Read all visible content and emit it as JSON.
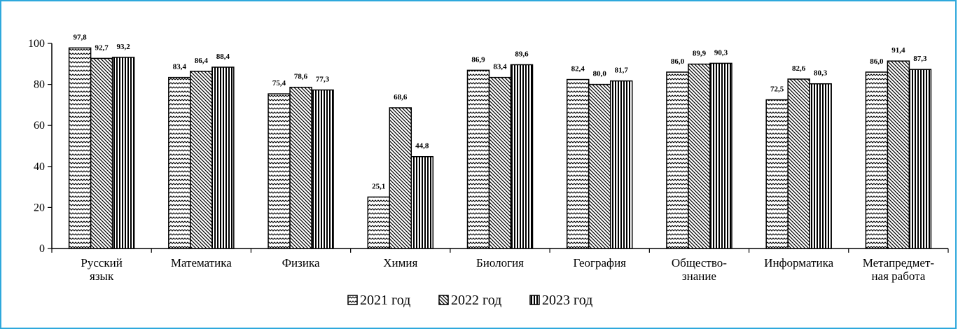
{
  "chart_data": {
    "type": "bar",
    "categories": [
      [
        "Русский",
        "язык"
      ],
      [
        "Математика"
      ],
      [
        "Физика"
      ],
      [
        "Химия"
      ],
      [
        "Биология"
      ],
      [
        "География"
      ],
      [
        "Общество-",
        "знание"
      ],
      [
        "Информатика"
      ],
      [
        "Метапредмет-",
        "ная работа"
      ]
    ],
    "series": [
      {
        "name": "2021 год",
        "pattern": "zigzag",
        "values": [
          97.8,
          83.4,
          75.4,
          25.1,
          86.9,
          82.4,
          86.0,
          72.5,
          86.0
        ],
        "labels": [
          "97,8",
          "83,4",
          "75,4",
          "25,1",
          "86,9",
          "82,4",
          "86,0",
          "72,5",
          "86,0"
        ]
      },
      {
        "name": "2022 год",
        "pattern": "diagonal",
        "values": [
          92.7,
          86.4,
          78.6,
          68.6,
          83.4,
          80.0,
          89.9,
          82.6,
          91.4
        ],
        "labels": [
          "92,7",
          "86,4",
          "78,6",
          "68,6",
          "83,4",
          "80,0",
          "89,9",
          "82,6",
          "91,4"
        ]
      },
      {
        "name": "2023 год",
        "pattern": "vertical",
        "values": [
          93.2,
          88.4,
          77.3,
          44.8,
          89.6,
          81.7,
          90.3,
          80.3,
          87.3
        ],
        "labels": [
          "93,2",
          "88,4",
          "77,3",
          "44,8",
          "89,6",
          "81,7",
          "90,3",
          "80,3",
          "87,3"
        ]
      }
    ],
    "yticks": [
      "0",
      "20",
      "40",
      "60",
      "80",
      "100"
    ],
    "ylim": [
      0,
      100
    ],
    "title": "",
    "xlabel": "",
    "ylabel": "",
    "legend_position": "bottom-center",
    "grid": false
  },
  "colors": {
    "frame": "#2ea8dc",
    "ink": "#000000",
    "fill": "#ffffff"
  }
}
